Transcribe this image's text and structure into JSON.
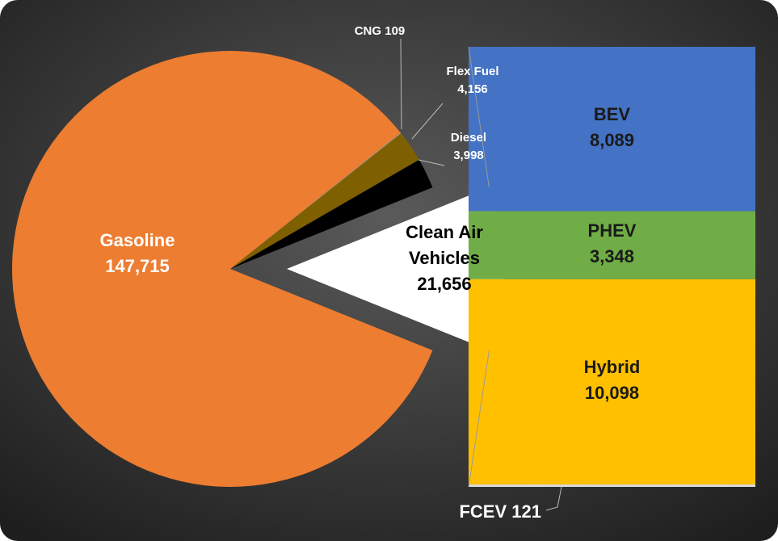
{
  "chart_data": {
    "type": "pie",
    "categories": [
      "Gasoline",
      "CNG",
      "Flex Fuel",
      "Diesel",
      "Clean Air Vehicles"
    ],
    "values": [
      147715,
      109,
      4156,
      3998,
      21656
    ],
    "value_labels": [
      "147,715",
      "109",
      "4,156",
      "3,998",
      "21,656"
    ],
    "colors": [
      "#ed7d31",
      "#a5a5a5",
      "#7f6000",
      "#000000",
      "#ffffff"
    ],
    "breakdown": {
      "categories": [
        "BEV",
        "PHEV",
        "Hybrid",
        "FCEV"
      ],
      "values": [
        8089,
        3348,
        10098,
        121
      ],
      "value_labels": [
        "8,089",
        "3,348",
        "10,098",
        "121"
      ],
      "colors": [
        "#4472c4",
        "#70ad47",
        "#ffc000",
        "#d9d9d9"
      ]
    }
  }
}
